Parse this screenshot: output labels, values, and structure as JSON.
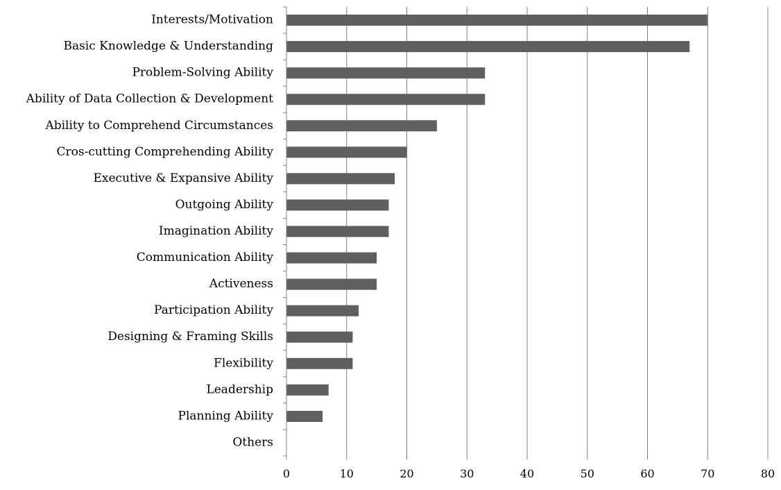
{
  "chart_data": {
    "type": "bar",
    "orientation": "horizontal",
    "title": "",
    "xlabel": "",
    "ylabel": "",
    "categories": [
      "Interests/Motivation",
      "Basic Knowledge & Understanding",
      "Problem-Solving Ability",
      "Ability of Data Collection & Development",
      "Ability to Comprehend Circumstances",
      "Cros-cutting Comprehending Ability",
      "Executive & Expansive Ability",
      "Outgoing Ability",
      "Imagination Ability",
      "Communication Ability",
      "Activeness",
      "Participation Ability",
      "Designing & Framing Skills",
      "Flexibility",
      "Leadership",
      "Planning Ability",
      "Others"
    ],
    "values": [
      70,
      67,
      33,
      33,
      25,
      20,
      18,
      17,
      17,
      15,
      15,
      12,
      11,
      11,
      7,
      6,
      0
    ],
    "xlim": [
      0,
      80
    ],
    "xticks": [
      0,
      10,
      20,
      30,
      40,
      50,
      60,
      70,
      80
    ],
    "grid": true,
    "legend": "none",
    "bar_color": "#5f5f5f",
    "grid_color": "#808080"
  }
}
